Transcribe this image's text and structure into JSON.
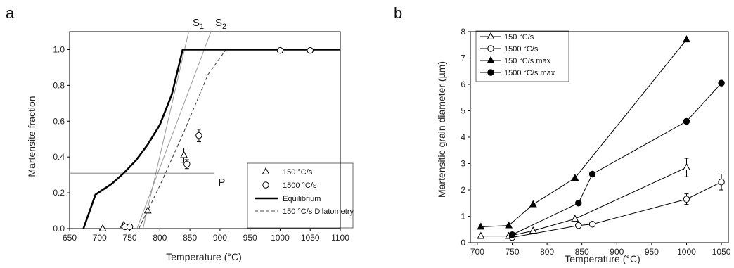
{
  "chart_data": [
    {
      "type": "scatter",
      "panel_label": "a",
      "xlabel": "Temperature (°C)",
      "ylabel": "Martensite fraction",
      "xlim": [
        650,
        1100
      ],
      "ylim": [
        0,
        1.1
      ],
      "xticks": [
        "650",
        "700",
        "750",
        "800",
        "850",
        "900",
        "950",
        "1000",
        "1050",
        "1100"
      ],
      "yticks": [
        "0.0",
        "0.2",
        "0.4",
        "0.6",
        "0.8",
        "1.0"
      ],
      "grid": false,
      "legend_position": "bottom-right",
      "series": [
        {
          "name": "150 °C/s",
          "marker": "open-triangle",
          "x": [
            705,
            740,
            780,
            840
          ],
          "y": [
            0.0,
            0.02,
            0.1,
            0.41
          ],
          "err": [
            0,
            0,
            0,
            0.04
          ]
        },
        {
          "name": "1500 °C/s",
          "marker": "open-circle",
          "x": [
            742,
            750,
            845,
            865,
            1000,
            1050
          ],
          "y": [
            0.01,
            0.01,
            0.36,
            0.52,
            0.995,
            0.995
          ],
          "err": [
            0,
            0,
            0.025,
            0.035,
            0,
            0
          ]
        },
        {
          "name": "Equilibrium",
          "style": "solid-thick",
          "x": [
            673,
            693,
            720,
            740,
            760,
            780,
            800,
            820,
            838,
            1100
          ],
          "y": [
            0.0,
            0.19,
            0.25,
            0.31,
            0.38,
            0.47,
            0.58,
            0.75,
            1.0,
            1.0
          ]
        },
        {
          "name": "150 °C/s Dilatometry",
          "style": "dashed",
          "x": [
            765,
            800,
            840,
            880,
            910
          ],
          "y": [
            0.0,
            0.24,
            0.54,
            0.86,
            1.0
          ]
        }
      ],
      "annotations": {
        "s1": {
          "sym": "S",
          "sub": "1",
          "line_x": [
            772,
            848
          ],
          "line_y": [
            0.0,
            1.1
          ]
        },
        "s2": {
          "sym": "S",
          "sub": "2",
          "line_x": [
            762,
            885
          ],
          "line_y": [
            0.0,
            1.1
          ]
        },
        "p": {
          "label": "P",
          "y": 0.31,
          "x_end": 890
        }
      }
    },
    {
      "type": "line",
      "panel_label": "b",
      "xlabel": "Temperature (°C)",
      "ylabel": "Martensitic grain diameter (µm)",
      "xlim": [
        690,
        1060
      ],
      "ylim": [
        0,
        8
      ],
      "xticks": [
        "700",
        "750",
        "800",
        "850",
        "900",
        "950",
        "1000",
        "1050"
      ],
      "yticks": [
        "0",
        "1",
        "2",
        "3",
        "4",
        "5",
        "6",
        "7",
        "8"
      ],
      "grid": false,
      "legend_position": "top-left",
      "series": [
        {
          "name": "150 °C/s",
          "marker": "open-triangle",
          "x": [
            705,
            745,
            780,
            840,
            1000
          ],
          "y": [
            0.25,
            0.25,
            0.45,
            0.9,
            2.85
          ],
          "err": [
            0,
            0,
            0,
            0,
            0.35
          ]
        },
        {
          "name": "1500 °C/s",
          "marker": "open-circle",
          "x": [
            750,
            845,
            865,
            1000,
            1050
          ],
          "y": [
            0.2,
            0.65,
            0.7,
            1.65,
            2.3
          ],
          "err": [
            0,
            0,
            0,
            0.2,
            0.3
          ]
        },
        {
          "name": "150 °C/s max",
          "marker": "filled-triangle",
          "x": [
            705,
            745,
            780,
            840,
            1000
          ],
          "y": [
            0.6,
            0.65,
            1.45,
            2.45,
            7.7
          ],
          "err": [
            0,
            0,
            0,
            0,
            0
          ]
        },
        {
          "name": "1500 °C/s max",
          "marker": "filled-circle",
          "x": [
            750,
            845,
            865,
            1000,
            1050
          ],
          "y": [
            0.3,
            1.5,
            2.6,
            4.6,
            6.05
          ],
          "err": [
            0,
            0,
            0,
            0,
            0
          ]
        }
      ]
    }
  ]
}
